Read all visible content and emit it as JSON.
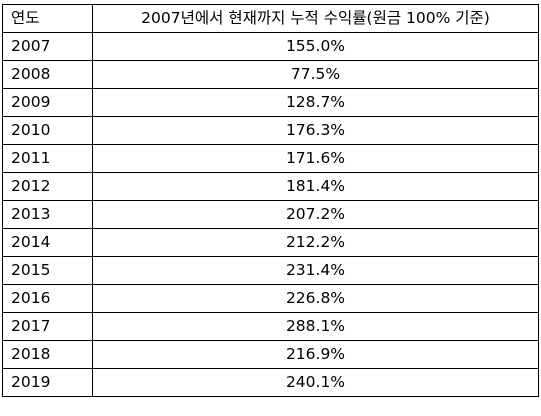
{
  "table": {
    "headers": {
      "year": "연도",
      "rate": "2007년에서 현재까지 누적 수익률(원금 100% 기준)"
    },
    "rows": [
      {
        "year": "2007",
        "rate": "155.0%"
      },
      {
        "year": "2008",
        "rate": "77.5%"
      },
      {
        "year": "2009",
        "rate": "128.7%"
      },
      {
        "year": "2010",
        "rate": "176.3%"
      },
      {
        "year": "2011",
        "rate": "171.6%"
      },
      {
        "year": "2012",
        "rate": "181.4%"
      },
      {
        "year": "2013",
        "rate": "207.2%"
      },
      {
        "year": "2014",
        "rate": "212.2%"
      },
      {
        "year": "2015",
        "rate": "231.4%"
      },
      {
        "year": "2016",
        "rate": "226.8%"
      },
      {
        "year": "2017",
        "rate": "288.1%"
      },
      {
        "year": "2018",
        "rate": "216.9%"
      },
      {
        "year": "2019",
        "rate": "240.1%"
      }
    ]
  }
}
